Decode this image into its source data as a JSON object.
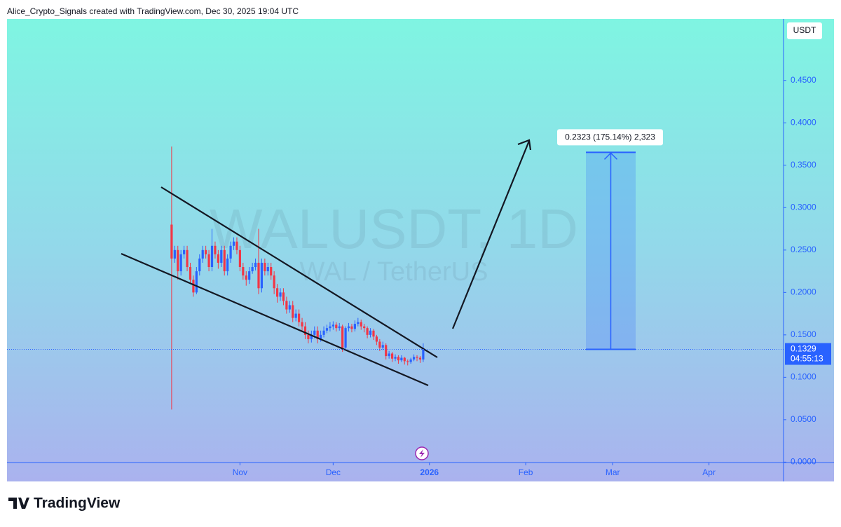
{
  "header": "Alice_Crypto_Signals created with TradingView.com, Dec 30, 2025 19:04 UTC",
  "footer": "TradingView",
  "chart_data": {
    "type": "candlestick",
    "title": "WALUSDT, 1D",
    "subtitle": "WAL / TetherUS",
    "currency": "USDT",
    "up_color": "#2962ff",
    "down_color": "#f23645",
    "last_price": 0.1329,
    "countdown": "04:55:13",
    "annotation": {
      "text": "0.2323 (175.14%) 2,323",
      "from": 0.1329,
      "to": 0.3652
    },
    "xlim": [
      "2025-08-18",
      "2026-04-25"
    ],
    "xticks": [
      {
        "value": "2025-11-01",
        "label": "Nov"
      },
      {
        "value": "2025-12-01",
        "label": "Dec"
      },
      {
        "value": "2026-01-01",
        "label": "2026"
      },
      {
        "value": "2026-02-01",
        "label": "Feb"
      },
      {
        "value": "2026-03-01",
        "label": "Mar"
      },
      {
        "value": "2026-04-01",
        "label": "Apr"
      }
    ],
    "ylim": [
      -0.0005,
      0.5225
    ],
    "yticks": [
      {
        "value": 0,
        "label": "0.0000"
      },
      {
        "value": 0.05,
        "label": "0.0500"
      },
      {
        "value": 0.1,
        "label": "0.1000"
      },
      {
        "value": 0.15,
        "label": "0.1500"
      },
      {
        "value": 0.2,
        "label": "0.2000"
      },
      {
        "value": 0.25,
        "label": "0.2500"
      },
      {
        "value": 0.3,
        "label": "0.3000"
      },
      {
        "value": 0.35,
        "label": "0.3500"
      },
      {
        "value": 0.4,
        "label": "0.4000"
      },
      {
        "value": 0.45,
        "label": "0.4500"
      }
    ],
    "x": [
      "2025-10-10",
      "2025-10-11",
      "2025-10-12",
      "2025-10-13",
      "2025-10-14",
      "2025-10-15",
      "2025-10-16",
      "2025-10-17",
      "2025-10-18",
      "2025-10-19",
      "2025-10-20",
      "2025-10-21",
      "2025-10-22",
      "2025-10-23",
      "2025-10-24",
      "2025-10-25",
      "2025-10-26",
      "2025-10-27",
      "2025-10-28",
      "2025-10-29",
      "2025-10-30",
      "2025-10-31",
      "2025-11-01",
      "2025-11-02",
      "2025-11-03",
      "2025-11-04",
      "2025-11-05",
      "2025-11-06",
      "2025-11-07",
      "2025-11-08",
      "2025-11-09",
      "2025-11-10",
      "2025-11-11",
      "2025-11-12",
      "2025-11-13",
      "2025-11-14",
      "2025-11-15",
      "2025-11-16",
      "2025-11-17",
      "2025-11-18",
      "2025-11-19",
      "2025-11-20",
      "2025-11-21",
      "2025-11-22",
      "2025-11-23",
      "2025-11-24",
      "2025-11-25",
      "2025-11-26",
      "2025-11-27",
      "2025-11-28",
      "2025-11-29",
      "2025-11-30",
      "2025-12-01",
      "2025-12-02",
      "2025-12-03",
      "2025-12-04",
      "2025-12-05",
      "2025-12-06",
      "2025-12-07",
      "2025-12-08",
      "2025-12-09",
      "2025-12-10",
      "2025-12-11",
      "2025-12-12",
      "2025-12-13",
      "2025-12-14",
      "2025-12-15",
      "2025-12-16",
      "2025-12-17",
      "2025-12-18",
      "2025-12-19",
      "2025-12-20",
      "2025-12-21",
      "2025-12-22",
      "2025-12-23",
      "2025-12-24",
      "2025-12-25",
      "2025-12-26",
      "2025-12-27",
      "2025-12-28",
      "2025-12-29",
      "2025-12-30"
    ],
    "open": [
      0.28,
      0.24,
      0.25,
      0.225,
      0.245,
      0.25,
      0.23,
      0.215,
      0.2,
      0.225,
      0.24,
      0.25,
      0.245,
      0.23,
      0.255,
      0.245,
      0.235,
      0.25,
      0.225,
      0.24,
      0.255,
      0.26,
      0.25,
      0.23,
      0.22,
      0.215,
      0.225,
      0.23,
      0.235,
      0.205,
      0.235,
      0.225,
      0.23,
      0.22,
      0.205,
      0.195,
      0.2,
      0.19,
      0.18,
      0.185,
      0.17,
      0.175,
      0.165,
      0.16,
      0.15,
      0.145,
      0.15,
      0.155,
      0.145,
      0.15,
      0.155,
      0.158,
      0.16,
      0.162,
      0.158,
      0.16,
      0.135,
      0.158,
      0.16,
      0.157,
      0.163,
      0.165,
      0.16,
      0.158,
      0.15,
      0.155,
      0.148,
      0.142,
      0.135,
      0.138,
      0.125,
      0.128,
      0.122,
      0.124,
      0.12,
      0.123,
      0.119,
      0.118,
      0.121,
      0.124,
      0.123,
      0.121
    ],
    "high": [
      0.372,
      0.255,
      0.255,
      0.25,
      0.255,
      0.255,
      0.235,
      0.22,
      0.23,
      0.245,
      0.255,
      0.255,
      0.25,
      0.275,
      0.26,
      0.25,
      0.255,
      0.255,
      0.245,
      0.26,
      0.265,
      0.265,
      0.255,
      0.235,
      0.225,
      0.23,
      0.235,
      0.24,
      0.275,
      0.24,
      0.24,
      0.235,
      0.235,
      0.225,
      0.21,
      0.205,
      0.205,
      0.195,
      0.19,
      0.19,
      0.18,
      0.18,
      0.17,
      0.165,
      0.155,
      0.155,
      0.16,
      0.16,
      0.155,
      0.16,
      0.162,
      0.165,
      0.166,
      0.165,
      0.164,
      0.162,
      0.16,
      0.164,
      0.163,
      0.167,
      0.17,
      0.168,
      0.163,
      0.16,
      0.158,
      0.157,
      0.15,
      0.145,
      0.142,
      0.14,
      0.131,
      0.13,
      0.127,
      0.126,
      0.126,
      0.124,
      0.121,
      0.123,
      0.127,
      0.126,
      0.125,
      0.14
    ],
    "low": [
      0.062,
      0.235,
      0.215,
      0.22,
      0.24,
      0.225,
      0.21,
      0.195,
      0.198,
      0.22,
      0.235,
      0.24,
      0.225,
      0.225,
      0.24,
      0.228,
      0.23,
      0.22,
      0.22,
      0.235,
      0.25,
      0.245,
      0.225,
      0.215,
      0.208,
      0.21,
      0.222,
      0.226,
      0.198,
      0.2,
      0.22,
      0.22,
      0.215,
      0.198,
      0.188,
      0.19,
      0.185,
      0.175,
      0.176,
      0.165,
      0.166,
      0.16,
      0.155,
      0.145,
      0.14,
      0.141,
      0.146,
      0.14,
      0.142,
      0.147,
      0.152,
      0.154,
      0.156,
      0.154,
      0.155,
      0.13,
      0.132,
      0.154,
      0.153,
      0.154,
      0.16,
      0.156,
      0.153,
      0.146,
      0.147,
      0.144,
      0.138,
      0.131,
      0.132,
      0.121,
      0.122,
      0.118,
      0.119,
      0.116,
      0.118,
      0.115,
      0.114,
      0.116,
      0.119,
      0.119,
      0.117,
      0.118
    ],
    "close": [
      0.24,
      0.25,
      0.225,
      0.245,
      0.25,
      0.23,
      0.215,
      0.2,
      0.225,
      0.24,
      0.25,
      0.245,
      0.23,
      0.255,
      0.245,
      0.235,
      0.25,
      0.225,
      0.24,
      0.255,
      0.26,
      0.25,
      0.23,
      0.22,
      0.215,
      0.225,
      0.23,
      0.235,
      0.205,
      0.235,
      0.225,
      0.23,
      0.22,
      0.205,
      0.195,
      0.2,
      0.19,
      0.18,
      0.185,
      0.17,
      0.175,
      0.165,
      0.16,
      0.15,
      0.145,
      0.15,
      0.155,
      0.145,
      0.15,
      0.155,
      0.158,
      0.16,
      0.162,
      0.158,
      0.16,
      0.135,
      0.158,
      0.16,
      0.157,
      0.163,
      0.165,
      0.16,
      0.158,
      0.15,
      0.155,
      0.148,
      0.142,
      0.135,
      0.138,
      0.125,
      0.128,
      0.122,
      0.124,
      0.12,
      0.123,
      0.119,
      0.118,
      0.121,
      0.124,
      0.123,
      0.121,
      0.1329
    ]
  }
}
